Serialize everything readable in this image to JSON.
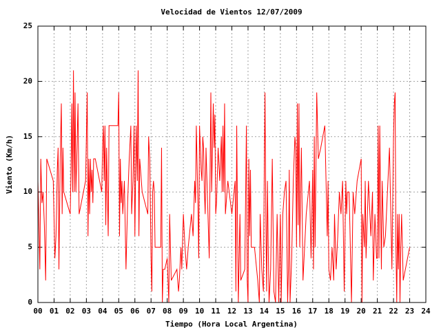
{
  "chart_data": {
    "type": "line",
    "title": "Velocidad de Vientos 12/07/2009",
    "xlabel": "Tiempo (Hora Local Argentina)",
    "ylabel": "Viento (Km/h)",
    "color": "#ff0000",
    "grid": true,
    "xlim": [
      0,
      24
    ],
    "ylim": [
      0,
      25
    ],
    "yticks": [
      0,
      5,
      10,
      15,
      20,
      25
    ],
    "xticks": [
      {
        "value": 0,
        "label": "00"
      },
      {
        "value": 1,
        "label": "01"
      },
      {
        "value": 2,
        "label": "02"
      },
      {
        "value": 3,
        "label": "03"
      },
      {
        "value": 4,
        "label": "04"
      },
      {
        "value": 5,
        "label": "05"
      },
      {
        "value": 6,
        "label": "06"
      },
      {
        "value": 7,
        "label": "07"
      },
      {
        "value": 8,
        "label": "08"
      },
      {
        "value": 9,
        "label": "09"
      },
      10,
      11,
      12,
      13,
      14,
      15,
      16,
      17,
      18,
      19,
      20,
      21,
      22,
      23,
      24
    ],
    "x": [
      0.0,
      0.05,
      0.12,
      0.18,
      0.25,
      0.32,
      0.4,
      0.48,
      0.55,
      0.95,
      1.05,
      1.12,
      1.2,
      1.25,
      1.3,
      1.38,
      1.45,
      1.5,
      1.55,
      1.6,
      2.0,
      2.05,
      2.1,
      2.15,
      2.2,
      2.25,
      2.3,
      2.35,
      2.42,
      2.48,
      2.55,
      2.95,
      3.05,
      3.1,
      3.15,
      3.2,
      3.25,
      3.3,
      3.35,
      3.4,
      3.45,
      3.55,
      3.95,
      4.0,
      4.05,
      4.1,
      4.15,
      4.2,
      4.25,
      4.35,
      4.4,
      4.5,
      4.6,
      4.7,
      4.8,
      4.95,
      5.0,
      5.05,
      5.1,
      5.15,
      5.2,
      5.25,
      5.35,
      5.45,
      5.55,
      5.65,
      5.75,
      5.8,
      5.88,
      5.95,
      6.0,
      6.08,
      6.15,
      6.2,
      6.25,
      6.3,
      6.35,
      6.45,
      6.8,
      6.85,
      6.92,
      7.0,
      7.05,
      7.1,
      7.15,
      7.2,
      7.25,
      7.5,
      7.6,
      7.65,
      7.7,
      7.75,
      7.85,
      8.0,
      8.1,
      8.15,
      8.25,
      8.6,
      8.7,
      8.75,
      8.85,
      8.9,
      9.0,
      9.1,
      9.2,
      9.3,
      9.5,
      9.6,
      9.7,
      9.75,
      9.8,
      9.9,
      9.95,
      10.0,
      10.1,
      10.15,
      10.2,
      10.25,
      10.3,
      10.35,
      10.4,
      10.5,
      10.6,
      10.7,
      10.75,
      10.85,
      10.9,
      10.95,
      11.0,
      11.05,
      11.15,
      11.25,
      11.35,
      11.4,
      11.45,
      11.5,
      11.55,
      11.6,
      11.75,
      12.0,
      12.2,
      12.25,
      12.3,
      12.35,
      12.4,
      12.5,
      12.55,
      12.8,
      12.9,
      12.95,
      13.0,
      13.05,
      13.1,
      13.15,
      13.2,
      13.3,
      13.4,
      13.6,
      13.7,
      13.75,
      13.85,
      13.95,
      14.0,
      14.05,
      14.1,
      14.15,
      14.2,
      14.25,
      14.3,
      14.4,
      14.5,
      14.6,
      14.7,
      14.8,
      14.9,
      15.0,
      15.05,
      15.15,
      15.25,
      15.35,
      15.4,
      15.45,
      15.5,
      15.55,
      15.6,
      15.7,
      15.8,
      15.9,
      15.95,
      16.0,
      16.05,
      16.1,
      16.15,
      16.2,
      16.3,
      16.4,
      16.6,
      16.8,
      16.9,
      17.0,
      17.05,
      17.1,
      17.15,
      17.25,
      17.35,
      17.5,
      17.75,
      17.9,
      17.95,
      18.0,
      18.1,
      18.2,
      18.3,
      18.35,
      18.45,
      18.55,
      18.65,
      18.75,
      18.85,
      18.95,
      19.05,
      19.1,
      19.15,
      19.25,
      19.3,
      19.4,
      19.5,
      19.6,
      19.75,
      20.0,
      20.05,
      20.1,
      20.2,
      20.25,
      20.3,
      20.45,
      20.6,
      20.7,
      20.75,
      20.85,
      20.95,
      21.0,
      21.05,
      21.1,
      21.15,
      21.2,
      21.25,
      21.3,
      21.4,
      21.5,
      21.75,
      21.9,
      22.0,
      22.05,
      22.1,
      22.15,
      22.2,
      22.25,
      22.3,
      22.35,
      22.4,
      22.45,
      22.5,
      22.6,
      23.0
    ],
    "values": [
      11,
      8,
      3,
      13,
      9,
      10,
      7,
      2,
      13,
      11,
      4,
      6,
      12,
      14,
      3,
      13,
      18,
      8,
      14,
      10,
      8,
      12,
      18,
      10,
      21,
      10,
      19,
      10,
      14,
      18,
      8,
      11,
      19,
      6,
      13,
      8,
      13,
      10,
      12,
      9,
      13,
      13,
      10,
      14,
      16,
      11,
      16,
      7,
      14,
      6,
      16,
      16,
      16,
      16,
      16,
      16,
      19,
      6,
      13,
      9,
      11,
      8,
      11,
      3,
      9,
      13,
      16,
      8,
      11,
      16,
      6,
      16,
      11,
      21,
      6,
      13,
      12,
      10,
      8,
      15,
      13,
      4,
      1,
      10,
      11,
      10,
      5,
      5,
      5,
      14,
      0,
      3,
      3,
      4,
      0,
      8,
      2,
      3,
      1,
      2,
      5,
      3,
      8,
      5,
      3,
      5,
      8,
      6,
      11,
      9,
      16,
      9,
      4,
      16,
      12,
      11,
      15,
      14,
      10,
      8,
      14,
      9,
      4,
      19,
      10,
      18,
      14,
      17,
      8,
      9,
      14,
      11,
      15,
      10,
      16,
      10,
      18,
      8,
      11,
      8,
      11,
      1,
      16,
      7,
      0,
      8,
      2,
      3,
      16,
      2,
      0,
      13,
      6,
      12,
      5,
      5,
      5,
      2,
      0,
      8,
      3,
      1,
      11,
      19,
      8,
      1,
      11,
      5,
      0,
      3,
      13,
      1,
      0,
      8,
      0,
      8,
      0,
      8,
      10,
      11,
      6,
      0,
      3,
      12,
      0,
      4,
      11,
      15,
      14,
      5,
      18,
      7,
      18,
      5,
      14,
      2,
      8,
      11,
      4,
      12,
      3,
      15,
      5,
      19,
      13,
      14,
      16,
      6,
      11,
      3,
      2,
      5,
      2,
      8,
      3,
      6,
      10,
      8,
      11,
      1,
      11,
      8,
      10,
      10,
      7,
      0,
      10,
      8,
      11,
      13,
      0,
      8,
      5,
      11,
      4,
      11,
      6,
      10,
      2,
      8,
      4,
      4,
      16,
      4,
      16,
      9,
      3,
      11,
      5,
      6,
      14,
      3,
      15,
      18,
      19,
      5,
      0,
      8,
      3,
      8,
      0,
      5,
      8,
      2,
      5
    ]
  }
}
